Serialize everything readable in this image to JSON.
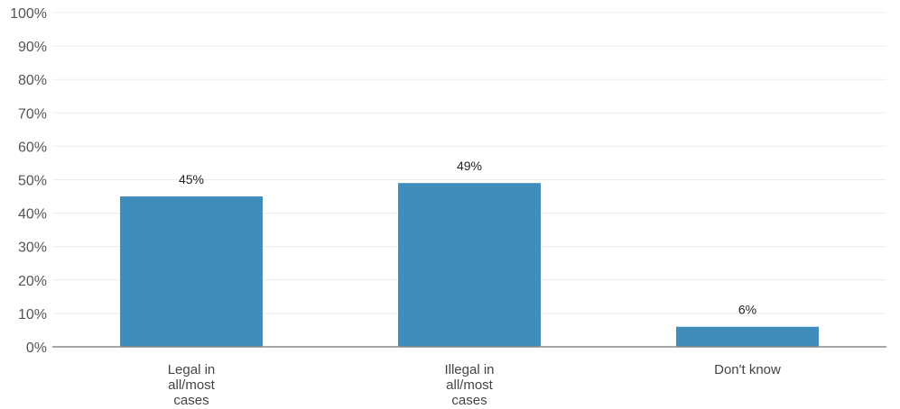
{
  "chart_data": {
    "type": "bar",
    "categories": [
      [
        "Legal in",
        "all/most",
        "cases"
      ],
      [
        "Illegal in",
        "all/most",
        "cases"
      ],
      [
        "Don't know"
      ]
    ],
    "values": [
      45,
      49,
      6
    ],
    "value_labels": [
      "45%",
      "49%",
      "6%"
    ],
    "ylim": [
      0,
      100
    ],
    "y_ticks": [
      "0%",
      "10%",
      "20%",
      "30%",
      "40%",
      "50%",
      "60%",
      "70%",
      "80%",
      "90%",
      "100%"
    ],
    "grid": true,
    "bar_color": "#3f8dbd"
  }
}
